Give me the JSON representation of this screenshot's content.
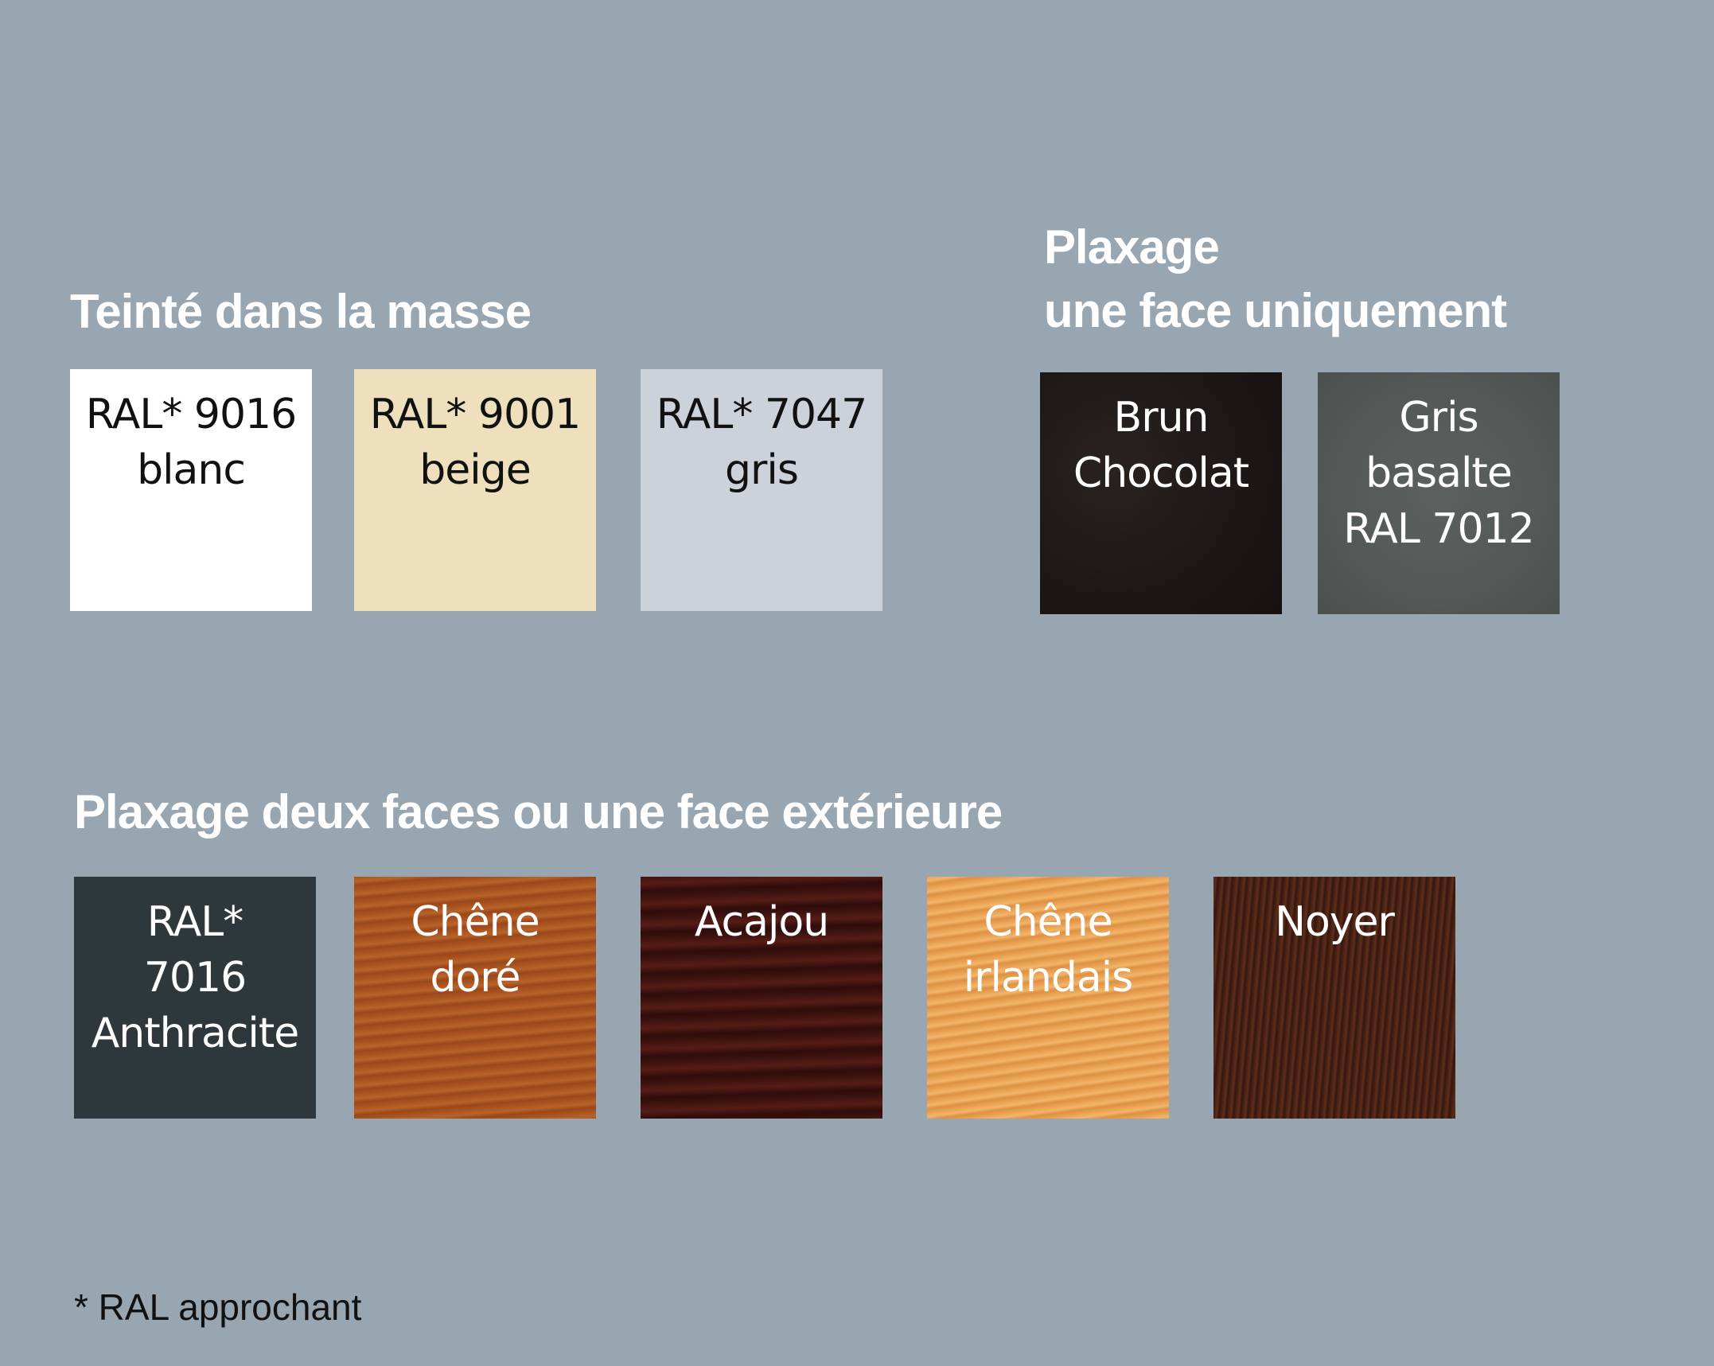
{
  "sections": {
    "teinte": {
      "title": "Teinté dans la masse",
      "swatches": [
        {
          "line1": "RAL* 9016",
          "line2": "blanc",
          "color": "#ffffff"
        },
        {
          "line1": "RAL* 9001",
          "line2": "beige",
          "color": "#efe0bd"
        },
        {
          "line1": "RAL* 7047",
          "line2": "gris",
          "color": "#ccd2da"
        }
      ]
    },
    "plaxage_une_face": {
      "title_line1": "Plaxage",
      "title_line2": "une face uniquement",
      "swatches": [
        {
          "line1": "Brun",
          "line2": "Chocolat",
          "color": "#1c1715"
        },
        {
          "line1": "Gris",
          "line2": "basalte",
          "line3": "RAL 7012",
          "color": "#545a57"
        }
      ]
    },
    "plaxage_deux_faces": {
      "title": "Plaxage deux faces ou une face extérieure",
      "swatches": [
        {
          "line1": "RAL*",
          "line2": "7016",
          "line3": "Anthracite",
          "color": "#2d373c"
        },
        {
          "line1": "Chêne",
          "line2": "doré",
          "color": "#a9521f"
        },
        {
          "line1": "Acajou",
          "color": "#3e1310"
        },
        {
          "line1": "Chêne",
          "line2": "irlandais",
          "color": "#e9a253"
        },
        {
          "line1": "Noyer",
          "color": "#4a2215"
        }
      ]
    }
  },
  "footnote": "* RAL approchant",
  "background": "#98a6b1"
}
